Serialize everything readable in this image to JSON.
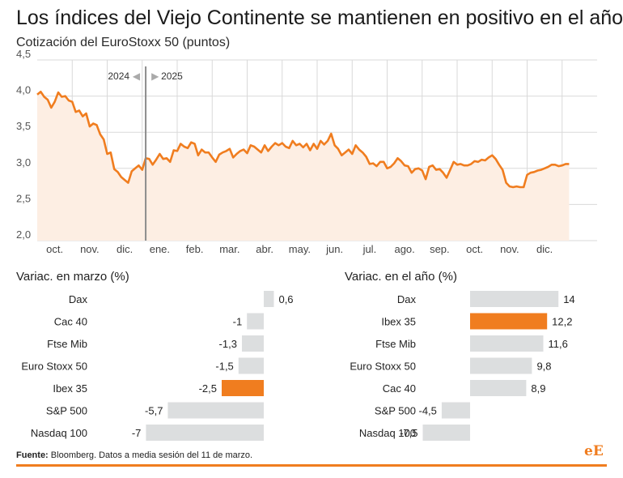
{
  "title": "Los índices del Viejo Continente se mantienen en positivo en el año",
  "colors": {
    "accent": "#f07d1f",
    "area_fill": "#fdeee3",
    "bar_gray": "#dcdedf",
    "grid": "#d9d9d9",
    "separator": "#999999"
  },
  "chart_data": [
    {
      "type": "area",
      "title": "Cotización del EuroStoxx 50 (puntos)",
      "unit": "miles de puntos",
      "ylim": [
        2.0,
        4.5
      ],
      "yticks": [
        2.0,
        2.5,
        3.0,
        3.5,
        4.0,
        4.5
      ],
      "ytick_labels": [
        "2,0",
        "2,5",
        "3,0",
        "3,5",
        "4,0",
        "4,5"
      ],
      "grid": true,
      "xlim": [
        0,
        16
      ],
      "month_labels": [
        "oct.",
        "nov.",
        "dic.",
        "ene.",
        "feb.",
        "mar.",
        "abr.",
        "may.",
        "jun.",
        "jul.",
        "ago.",
        "sep.",
        "oct.",
        "nov.",
        "dic."
      ],
      "year_marker": {
        "x": 3.1,
        "left_label": "2024",
        "right_label": "2025",
        "left_arrow": "◀",
        "right_arrow": "▶"
      },
      "series": [
        {
          "name": "EuroStoxx 50",
          "x": [
            0.0,
            0.1,
            0.2,
            0.3,
            0.4,
            0.5,
            0.6,
            0.7,
            0.8,
            0.9,
            1.0,
            1.1,
            1.2,
            1.3,
            1.4,
            1.5,
            1.6,
            1.7,
            1.8,
            1.9,
            2.0,
            2.1,
            2.2,
            2.3,
            2.4,
            2.5,
            2.6,
            2.7,
            2.8,
            2.9,
            3.0,
            3.1,
            3.2,
            3.3,
            3.4,
            3.5,
            3.6,
            3.7,
            3.8,
            3.9,
            4.0,
            4.1,
            4.2,
            4.3,
            4.4,
            4.5,
            4.6,
            4.7,
            4.8,
            4.9,
            5.0,
            5.1,
            5.2,
            5.3,
            5.4,
            5.5,
            5.6,
            5.7,
            5.8,
            5.9,
            6.0,
            6.1,
            6.2,
            6.3,
            6.4,
            6.5,
            6.6,
            6.7,
            6.8,
            6.9,
            7.0,
            7.1,
            7.2,
            7.3,
            7.4,
            7.5,
            7.6,
            7.7,
            7.8,
            7.9,
            8.0,
            8.1,
            8.2,
            8.3,
            8.4,
            8.5,
            8.6,
            8.7,
            8.8,
            8.9,
            9.0,
            9.1,
            9.2,
            9.3,
            9.4,
            9.5,
            9.6,
            9.7,
            9.8,
            9.9,
            10.0,
            10.1,
            10.2,
            10.3,
            10.4,
            10.5,
            10.6,
            10.7,
            10.8,
            10.9,
            11.0,
            11.1,
            11.2,
            11.3,
            11.4,
            11.5,
            11.6,
            11.7,
            11.8,
            11.9,
            12.0,
            12.1,
            12.2,
            12.3,
            12.4,
            12.5,
            12.6,
            12.7,
            12.8,
            12.9,
            13.0,
            13.1,
            13.2,
            13.3,
            13.4,
            13.5,
            13.6,
            13.7,
            13.8,
            13.9,
            14.0,
            14.1,
            14.2,
            14.3,
            14.4,
            14.5,
            14.6,
            14.7,
            14.8,
            14.9,
            15.0,
            15.1,
            15.2
          ],
          "values": [
            4.02,
            4.06,
            3.99,
            3.95,
            3.84,
            3.92,
            4.05,
            3.99,
            4.0,
            3.94,
            3.92,
            3.78,
            3.8,
            3.72,
            3.76,
            3.58,
            3.62,
            3.6,
            3.47,
            3.4,
            3.2,
            3.22,
            2.99,
            2.95,
            2.88,
            2.84,
            2.8,
            2.96,
            3.0,
            3.04,
            2.98,
            3.14,
            3.13,
            3.05,
            3.12,
            3.2,
            3.13,
            3.14,
            3.09,
            3.25,
            3.24,
            3.34,
            3.3,
            3.28,
            3.36,
            3.34,
            3.18,
            3.26,
            3.22,
            3.22,
            3.15,
            3.09,
            3.19,
            3.22,
            3.24,
            3.27,
            3.15,
            3.2,
            3.24,
            3.26,
            3.21,
            3.32,
            3.3,
            3.26,
            3.22,
            3.32,
            3.24,
            3.3,
            3.35,
            3.32,
            3.35,
            3.3,
            3.28,
            3.38,
            3.32,
            3.34,
            3.29,
            3.34,
            3.25,
            3.34,
            3.27,
            3.38,
            3.33,
            3.38,
            3.48,
            3.32,
            3.27,
            3.18,
            3.22,
            3.26,
            3.2,
            3.32,
            3.26,
            3.22,
            3.16,
            3.06,
            3.07,
            3.03,
            3.09,
            3.09,
            3.0,
            3.02,
            3.07,
            3.14,
            3.1,
            3.04,
            3.03,
            2.94,
            2.99,
            3.0,
            2.97,
            2.85,
            3.02,
            3.04,
            2.98,
            2.99,
            2.94,
            2.87,
            2.98,
            3.09,
            3.05,
            3.06,
            3.04,
            3.04,
            3.06,
            3.1,
            3.09,
            3.12,
            3.11,
            3.15,
            3.18,
            3.13,
            3.05,
            2.98,
            2.8,
            2.75,
            2.74,
            2.75,
            2.74,
            2.74,
            2.91,
            2.94,
            2.95,
            2.97,
            2.98,
            3.0,
            3.02,
            3.05,
            3.05,
            3.03,
            3.04,
            3.06,
            3.06
          ]
        }
      ]
    },
    {
      "type": "bar",
      "orientation": "horizontal",
      "title": "Variac. en marzo (%)",
      "categories": [
        "Dax",
        "Cac 40",
        "Ftse Mib",
        "Euro Stoxx 50",
        "Ibex 35",
        "S&P 500",
        "Nasdaq 100"
      ],
      "values": [
        0.6,
        -1,
        -1.3,
        -1.5,
        -2.5,
        -5.7,
        -7
      ],
      "value_labels": [
        "0,6",
        "-1",
        "-1,3",
        "-1,5",
        "-2,5",
        "-5,7",
        "-7"
      ],
      "highlight": "Ibex 35",
      "xlim": [
        -7,
        0.6
      ]
    },
    {
      "type": "bar",
      "orientation": "horizontal",
      "title": "Variac. en el año (%)",
      "categories": [
        "Dax",
        "Ibex 35",
        "Ftse Mib",
        "Euro Stoxx 50",
        "Cac 40",
        "S&P 500",
        "Nasdaq 100"
      ],
      "values": [
        14,
        12.2,
        11.6,
        9.8,
        8.9,
        -4.5,
        -7.5
      ],
      "value_labels": [
        "14",
        "12,2",
        "11,6",
        "9,8",
        "8,9",
        "-4,5",
        "-7,5"
      ],
      "highlight": "Ibex 35",
      "xlim": [
        -7.5,
        14
      ]
    }
  ],
  "footer": {
    "source_label": "Fuente:",
    "source_text": "Bloomberg. Datos a media sesión del 11 de marzo.",
    "logo_e1": "e",
    "logo_e2": "E"
  }
}
